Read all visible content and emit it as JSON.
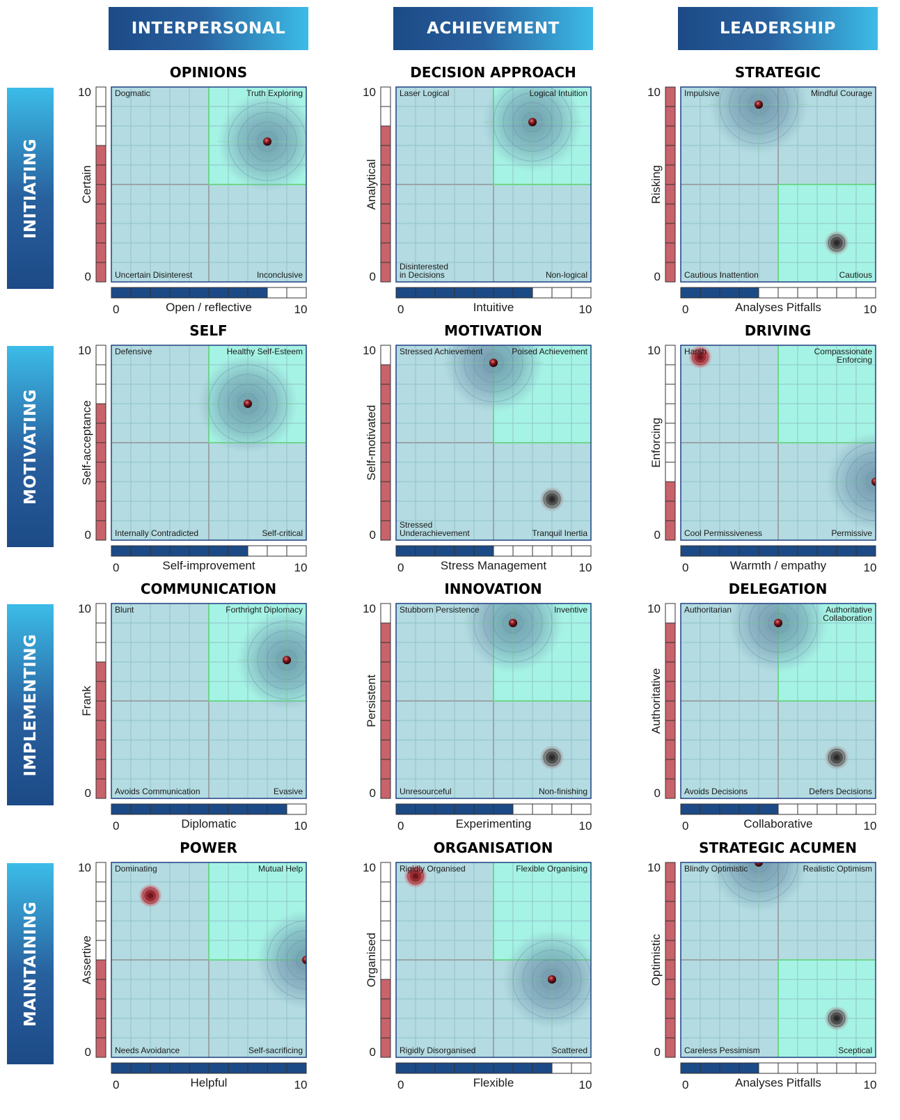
{
  "columns": [
    "INTERPERSONAL",
    "ACHIEVEMENT",
    "LEADERSHIP"
  ],
  "rows": [
    "INITIATING",
    "MOTIVATING",
    "IMPLEMENTING",
    "MAINTAINING"
  ],
  "colors": {
    "header_dark": "#1c4a86",
    "header_light": "#3cbce8",
    "quadrant_teal": "#b3dbe1",
    "quadrant_green": "#a5f3e4",
    "bar_red": "#c9636b",
    "bar_blue": "#1c4a86"
  },
  "chart_data": [
    {
      "type": "scatter",
      "title": "OPINIONS",
      "xlabel": "Open / reflective",
      "ylabel": "Certain",
      "xlim": [
        0,
        10
      ],
      "ylim": [
        0,
        10
      ],
      "x_ticks": [
        "0",
        "10"
      ],
      "y_ticks": [
        "10",
        "0"
      ],
      "x_bar": 8,
      "y_bar": 7,
      "highlight_quadrant": "top-right",
      "quadrants": {
        "top_left": "Dogmatic",
        "top_right": "Truth Exploring",
        "bottom_left": "Uncertain Disinterest",
        "bottom_right": "Inconclusive"
      },
      "marker": {
        "x": 8,
        "y": 7.2,
        "type": "red-dot-with-blue-halo"
      }
    },
    {
      "type": "scatter",
      "title": "DECISION APPROACH",
      "xlabel": "Intuitive",
      "ylabel": "Analytical",
      "xlim": [
        0,
        10
      ],
      "ylim": [
        0,
        10
      ],
      "x_ticks": [
        "0",
        "10"
      ],
      "y_ticks": [
        "10",
        "0"
      ],
      "x_bar": 7,
      "y_bar": 8,
      "highlight_quadrant": "top-right",
      "quadrants": {
        "top_left": "Laser Logical",
        "top_right": "Logical Intuition",
        "bottom_left": "Disinterested in Decisions",
        "bottom_right": "Non-logical"
      },
      "marker": {
        "x": 7,
        "y": 8.2,
        "type": "red-dot-with-blue-halo"
      },
      "alt_marker": null
    },
    {
      "type": "scatter",
      "title": "STRATEGIC",
      "xlabel": "Analyses Pitfalls",
      "ylabel": "Risking",
      "xlim": [
        0,
        10
      ],
      "ylim": [
        0,
        10
      ],
      "x_ticks": [
        "0",
        "10"
      ],
      "y_ticks": [
        "10",
        "0"
      ],
      "x_bar": 4,
      "y_bar": 10,
      "highlight_quadrant": "bottom-right",
      "quadrants": {
        "top_left": "Impulsive",
        "top_right": "Mindful Courage",
        "bottom_left": "Cautious Inattention",
        "bottom_right": "Cautious"
      },
      "marker": {
        "x": 4,
        "y": 9.1,
        "type": "red-dot-with-blue-halo"
      },
      "alt_marker": {
        "x": 8,
        "y": 2,
        "type": "grey-swirl"
      }
    },
    {
      "type": "scatter",
      "title": "SELF",
      "xlabel": "Self-improvement",
      "ylabel": "Self-acceptance",
      "xlim": [
        0,
        10
      ],
      "ylim": [
        0,
        10
      ],
      "x_ticks": [
        "0",
        "10"
      ],
      "y_ticks": [
        "10",
        "0"
      ],
      "x_bar": 7,
      "y_bar": 7,
      "highlight_quadrant": "top-right",
      "quadrants": {
        "top_left": "Defensive",
        "top_right": "Healthy Self-Esteem",
        "bottom_left": "Internally Contradicted",
        "bottom_right": "Self-critical"
      },
      "marker": {
        "x": 7,
        "y": 7,
        "type": "red-dot-with-blue-halo"
      },
      "alt_marker": null
    },
    {
      "type": "scatter",
      "title": "MOTIVATION",
      "xlabel": "Stress Management",
      "ylabel": "Self-motivated",
      "xlim": [
        0,
        10
      ],
      "ylim": [
        0,
        10
      ],
      "x_ticks": [
        "0",
        "10"
      ],
      "y_ticks": [
        "10",
        "0"
      ],
      "x_bar": 5,
      "y_bar": 9,
      "highlight_quadrant": "top-right",
      "quadrants": {
        "top_left": "Stressed Achievement",
        "top_right": "Poised Achievement",
        "bottom_left": "Stressed Underachievement",
        "bottom_right": "Tranquil Inertia"
      },
      "marker": {
        "x": 5,
        "y": 9.1,
        "type": "red-dot-with-blue-halo"
      },
      "alt_marker": {
        "x": 8,
        "y": 2.1,
        "type": "grey-swirl"
      }
    },
    {
      "type": "scatter",
      "title": "DRIVING",
      "xlabel": "Warmth / empathy",
      "ylabel": "Enforcing",
      "xlim": [
        0,
        10
      ],
      "ylim": [
        0,
        10
      ],
      "x_ticks": [
        "0",
        "10"
      ],
      "y_ticks": [
        "10",
        "0"
      ],
      "x_bar": 10,
      "y_bar": 3,
      "highlight_quadrant": "top-right",
      "quadrants": {
        "top_left": "Harsh",
        "top_right": "Compassionate Enforcing",
        "bottom_left": "Cool Permissiveness",
        "bottom_right": "Permissive"
      },
      "marker": {
        "x": 10,
        "y": 3,
        "type": "red-dot-with-blue-halo"
      },
      "alt_marker": {
        "x": 1,
        "y": 9.4,
        "type": "red-swirl"
      }
    },
    {
      "type": "scatter",
      "title": "COMMUNICATION",
      "xlabel": "Diplomatic",
      "ylabel": "Frank",
      "xlim": [
        0,
        10
      ],
      "ylim": [
        0,
        10
      ],
      "x_ticks": [
        "0",
        "10"
      ],
      "y_ticks": [
        "10",
        "0"
      ],
      "x_bar": 9,
      "y_bar": 7,
      "highlight_quadrant": "top-right",
      "quadrants": {
        "top_left": "Blunt",
        "top_right": "Forthright Diplomacy",
        "bottom_left": "Avoids Communication",
        "bottom_right": "Evasive"
      },
      "marker": {
        "x": 9,
        "y": 7.1,
        "type": "red-dot-with-blue-halo"
      },
      "alt_marker": null
    },
    {
      "type": "scatter",
      "title": "INNOVATION",
      "xlabel": "Experimenting",
      "ylabel": "Persistent",
      "xlim": [
        0,
        10
      ],
      "ylim": [
        0,
        10
      ],
      "x_ticks": [
        "0",
        "10"
      ],
      "y_ticks": [
        "10",
        "0"
      ],
      "x_bar": 6,
      "y_bar": 9,
      "highlight_quadrant": "top-right",
      "quadrants": {
        "top_left": "Stubborn Persistence",
        "top_right": "Inventive",
        "bottom_left": "Unresourceful",
        "bottom_right": "Non-finishing"
      },
      "marker": {
        "x": 6,
        "y": 9,
        "type": "red-dot-with-blue-halo"
      },
      "alt_marker": {
        "x": 8,
        "y": 2.1,
        "type": "grey-swirl"
      }
    },
    {
      "type": "scatter",
      "title": "DELEGATION",
      "xlabel": "Collaborative",
      "ylabel": "Authoritative",
      "xlim": [
        0,
        10
      ],
      "ylim": [
        0,
        10
      ],
      "x_ticks": [
        "0",
        "10"
      ],
      "y_ticks": [
        "10",
        "0"
      ],
      "x_bar": 5,
      "y_bar": 9,
      "highlight_quadrant": "top-right",
      "quadrants": {
        "top_left": "Authoritarian",
        "top_right": "Authoritative Collaboration",
        "bottom_left": "Avoids Decisions",
        "bottom_right": "Defers Decisions"
      },
      "marker": {
        "x": 5,
        "y": 9,
        "type": "red-dot-with-blue-halo"
      },
      "alt_marker": {
        "x": 8,
        "y": 2.1,
        "type": "grey-swirl"
      }
    },
    {
      "type": "scatter",
      "title": "POWER",
      "xlabel": "Helpful",
      "ylabel": "Assertive",
      "xlim": [
        0,
        10
      ],
      "ylim": [
        0,
        10
      ],
      "x_ticks": [
        "0",
        "10"
      ],
      "y_ticks": [
        "10",
        "0"
      ],
      "x_bar": 10,
      "y_bar": 5,
      "highlight_quadrant": "top-right",
      "quadrants": {
        "top_left": "Dominating",
        "top_right": "Mutual Help",
        "bottom_left": "Needs Avoidance",
        "bottom_right": "Self-sacrificing"
      },
      "marker": {
        "x": 10,
        "y": 5,
        "type": "red-dot-with-blue-halo"
      },
      "alt_marker": {
        "x": 2,
        "y": 8.3,
        "type": "red-swirl"
      }
    },
    {
      "type": "scatter",
      "title": "ORGANISATION",
      "xlabel": "Flexible",
      "ylabel": "Organised",
      "xlim": [
        0,
        10
      ],
      "ylim": [
        0,
        10
      ],
      "x_ticks": [
        "0",
        "10"
      ],
      "y_ticks": [
        "10",
        "0"
      ],
      "x_bar": 8,
      "y_bar": 4,
      "highlight_quadrant": "top-right",
      "quadrants": {
        "top_left": "Rigidly Organised",
        "top_right": "Flexible Organising",
        "bottom_left": "Rigidly Disorganised",
        "bottom_right": "Scattered"
      },
      "marker": {
        "x": 8,
        "y": 4,
        "type": "red-dot-with-blue-halo"
      },
      "alt_marker": {
        "x": 1,
        "y": 9.3,
        "type": "red-swirl"
      }
    },
    {
      "type": "scatter",
      "title": "STRATEGIC ACUMEN",
      "xlabel": "Analyses Pitfalls",
      "ylabel": "Optimistic",
      "xlim": [
        0,
        10
      ],
      "ylim": [
        0,
        10
      ],
      "x_ticks": [
        "0",
        "10"
      ],
      "y_ticks": [
        "10",
        "0"
      ],
      "x_bar": 4,
      "y_bar": 10,
      "highlight_quadrant": "bottom-right",
      "quadrants": {
        "top_left": "Blindly Optimistic",
        "top_right": "Realistic Optimism",
        "bottom_left": "Careless Pessimism",
        "bottom_right": "Sceptical"
      },
      "marker": {
        "x": 4,
        "y": 10,
        "type": "red-dot-with-blue-halo"
      },
      "alt_marker": {
        "x": 8,
        "y": 2,
        "type": "grey-swirl"
      }
    }
  ]
}
